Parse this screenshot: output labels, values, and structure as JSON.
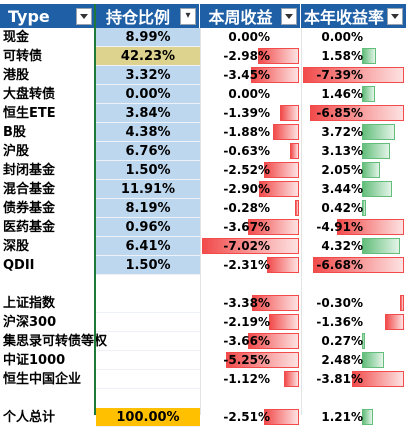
{
  "headers": [
    {
      "label": "Type",
      "dropdown": "filter"
    },
    {
      "label": "持仓比例",
      "dropdown": "sort"
    },
    {
      "label": "本周收益",
      "dropdown": "filter"
    },
    {
      "label": "本年收益率",
      "dropdown": "filter"
    }
  ],
  "colors": {
    "header_bg": "#1f5fa5",
    "alloc_blue": "#bdd7ee",
    "alloc_highlight": "#ddd28e",
    "alloc_total": "#ffc000",
    "neg_bar": "#f24b4b",
    "pos_bar": "#63be7b"
  },
  "rows": [
    {
      "type": "现金",
      "alloc": "8.99%",
      "alloc_val": 8.99,
      "week": "0.00%",
      "week_val": 0.0,
      "year": "0.00%",
      "year_val": 0.0
    },
    {
      "type": "可转债",
      "alloc": "42.23%",
      "alloc_val": 42.23,
      "alloc_highlight": true,
      "week": "-2.98%",
      "week_val": -2.98,
      "year": "1.58%",
      "year_val": 1.58
    },
    {
      "type": "港股",
      "alloc": "3.32%",
      "alloc_val": 3.32,
      "week": "-3.45%",
      "week_val": -3.45,
      "year": "-7.39%",
      "year_val": -7.39
    },
    {
      "type": "大盘转债",
      "alloc": "0.00%",
      "alloc_val": 0.0,
      "week": "0.00%",
      "week_val": 0.0,
      "year": "1.46%",
      "year_val": 1.46
    },
    {
      "type": "恒生ETE",
      "alloc": "3.84%",
      "alloc_val": 3.84,
      "week": "-1.39%",
      "week_val": -1.39,
      "year": "-6.85%",
      "year_val": -6.85
    },
    {
      "type": "B股",
      "alloc": "4.38%",
      "alloc_val": 4.38,
      "week": "-1.88%",
      "week_val": -1.88,
      "year": "3.72%",
      "year_val": 3.72
    },
    {
      "type": "沪股",
      "alloc": "6.76%",
      "alloc_val": 6.76,
      "week": "-0.63%",
      "week_val": -0.63,
      "year": "3.13%",
      "year_val": 3.13
    },
    {
      "type": "封闭基金",
      "alloc": "1.50%",
      "alloc_val": 1.5,
      "week": "-2.52%",
      "week_val": -2.52,
      "year": "2.05%",
      "year_val": 2.05
    },
    {
      "type": "混合基金",
      "alloc": "11.91%",
      "alloc_val": 11.91,
      "week": "-2.90%",
      "week_val": -2.9,
      "year": "3.44%",
      "year_val": 3.44
    },
    {
      "type": "债券基金",
      "alloc": "8.19%",
      "alloc_val": 8.19,
      "week": "-0.28%",
      "week_val": -0.28,
      "year": "0.42%",
      "year_val": 0.42
    },
    {
      "type": "医药基金",
      "alloc": "0.96%",
      "alloc_val": 0.96,
      "week": "-3.67%",
      "week_val": -3.67,
      "year": "-4.91%",
      "year_val": -4.91
    },
    {
      "type": "深股",
      "alloc": "6.41%",
      "alloc_val": 6.41,
      "week": "-7.02%",
      "week_val": -7.02,
      "year": "4.32%",
      "year_val": 4.32
    },
    {
      "type": "QDII",
      "alloc": "1.50%",
      "alloc_val": 1.5,
      "week": "-2.31%",
      "week_val": -2.31,
      "year": "-6.68%",
      "year_val": -6.68
    },
    {
      "blank": true
    },
    {
      "type": "上证指数",
      "alloc": "",
      "week": "-3.38%",
      "week_val": -3.38,
      "year": "-0.30%",
      "year_val": -0.3
    },
    {
      "type": "沪深300",
      "alloc": "",
      "week": "-2.19%",
      "week_val": -2.19,
      "year": "-1.36%",
      "year_val": -1.36
    },
    {
      "type": "集思录可转债等权",
      "alloc": "",
      "week": "-3.66%",
      "week_val": -3.66,
      "year": "0.27%",
      "year_val": 0.27
    },
    {
      "type": "中证1000",
      "alloc": "",
      "week": "-5.25%",
      "week_val": -5.25,
      "year": "2.48%",
      "year_val": 2.48
    },
    {
      "type": "恒生中国企业",
      "alloc": "",
      "week": "-1.12%",
      "week_val": -1.12,
      "year": "-3.81%",
      "year_val": -3.81
    },
    {
      "blank": true
    },
    {
      "type": "个人总计",
      "alloc": "100.00%",
      "alloc_val": 100.0,
      "alloc_total": true,
      "week": "-2.51%",
      "week_val": -2.51,
      "year": "1.21%",
      "year_val": 1.21
    }
  ]
}
